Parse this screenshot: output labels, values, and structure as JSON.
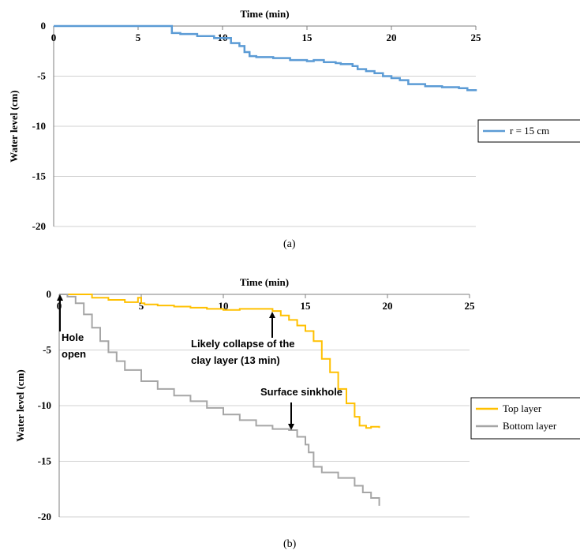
{
  "chart_data": [
    {
      "panel": "(a)",
      "type": "line",
      "title": "",
      "xlabel": "Time (min)",
      "ylabel": "Water level  (cm)",
      "xlim": [
        0,
        25
      ],
      "ylim": [
        -20,
        0
      ],
      "xticks": [
        "0",
        "5",
        "10",
        "15",
        "20",
        "25"
      ],
      "yticks": [
        "0",
        "-5",
        "-10",
        "-15",
        "-20"
      ],
      "x_axis_position": "top",
      "grid": "horizontal",
      "legend_placement": "right",
      "series": [
        {
          "name": "r = 15 cm",
          "color": "#5b9bd5",
          "x": [
            0,
            5,
            6.8,
            7.0,
            7.5,
            8.5,
            9.5,
            10.5,
            11,
            11.3,
            11.6,
            12,
            13,
            14,
            15,
            15.4,
            16,
            16.7,
            17,
            17.7,
            18,
            18.5,
            19,
            19.5,
            20,
            20.5,
            21,
            22,
            23,
            24,
            24.5,
            25
          ],
          "y": [
            0,
            0,
            0,
            -0.7,
            -0.8,
            -1.0,
            -1.2,
            -1.7,
            -2.0,
            -2.6,
            -3.0,
            -3.1,
            -3.2,
            -3.4,
            -3.5,
            -3.4,
            -3.6,
            -3.7,
            -3.8,
            -4.0,
            -4.3,
            -4.5,
            -4.7,
            -5.0,
            -5.2,
            -5.4,
            -5.8,
            -6.0,
            -6.1,
            -6.2,
            -6.4,
            -6.5
          ]
        }
      ]
    },
    {
      "panel": "(b)",
      "type": "line",
      "title": "",
      "xlabel": "Time (min)",
      "ylabel": "Water level  (cm)",
      "xlim": [
        0,
        25
      ],
      "ylim": [
        -20,
        0
      ],
      "xticks": [
        "0",
        "5",
        "10",
        "15",
        "20",
        "25"
      ],
      "yticks": [
        "0",
        "-5",
        "-10",
        "-15",
        "-20"
      ],
      "x_axis_position": "top",
      "grid": "horizontal",
      "legend_placement": "right",
      "series": [
        {
          "name": "Top layer",
          "color": "#ffc000",
          "x": [
            0,
            1,
            2,
            3,
            4,
            4.8,
            5,
            5.2,
            6,
            7,
            8,
            9,
            10,
            11,
            12,
            13,
            13.5,
            14,
            14.5,
            15,
            15.5,
            16,
            16.5,
            17,
            17.5,
            18,
            18.3,
            18.7,
            19,
            19.5
          ],
          "y": [
            0,
            0,
            -0.3,
            -0.5,
            -0.7,
            -0.3,
            -0.8,
            -0.9,
            -1.0,
            -1.1,
            -1.2,
            -1.3,
            -1.4,
            -1.3,
            -1.3,
            -1.5,
            -1.9,
            -2.3,
            -2.8,
            -3.3,
            -4.2,
            -5.8,
            -7.0,
            -8.5,
            -9.8,
            -11.0,
            -11.8,
            -12.0,
            -11.9,
            -12.0
          ]
        },
        {
          "name": "Bottom layer",
          "color": "#a6a6a6",
          "x": [
            0,
            0.5,
            1,
            1.5,
            2,
            2.5,
            3,
            3.5,
            4,
            5,
            6,
            7,
            8,
            9,
            10,
            11,
            12,
            13,
            14,
            14.5,
            15,
            15.2,
            15.5,
            16,
            17,
            18,
            18.5,
            19,
            19.5
          ],
          "y": [
            0,
            -0.2,
            -0.8,
            -1.8,
            -3.0,
            -4.2,
            -5.2,
            -6.0,
            -6.8,
            -7.8,
            -8.5,
            -9.1,
            -9.6,
            -10.2,
            -10.8,
            -11.3,
            -11.8,
            -12.1,
            -12.2,
            -12.8,
            -13.5,
            -14.2,
            -15.5,
            -16.0,
            -16.5,
            -17.2,
            -17.8,
            -18.3,
            -19.0
          ]
        }
      ],
      "annotations": [
        {
          "lines": [
            "Hole",
            "open"
          ],
          "x": 0,
          "y": 0
        },
        {
          "lines": [
            "Likely collapse of the",
            "clay layer (13 min)"
          ],
          "x": 13,
          "y": -1.5
        },
        {
          "lines": [
            "Surface sinkhole"
          ],
          "x": 14,
          "y": -12.2
        }
      ]
    }
  ],
  "captions": {
    "a": "(a)",
    "b": "(b)"
  }
}
